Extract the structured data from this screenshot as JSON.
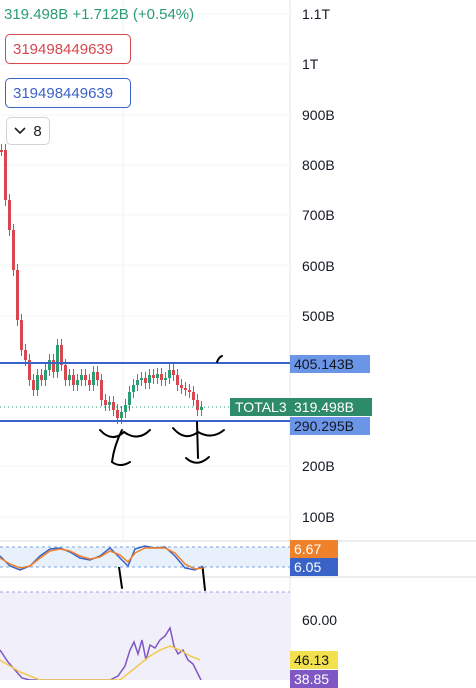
{
  "header": {
    "price_line": "319.498B  +1.712B (+0.54%)"
  },
  "value_boxes": {
    "red": "319498449639",
    "blue": "319498449639"
  },
  "indicators_toggle": {
    "icon": "chevron-down-icon",
    "count": "8"
  },
  "price_scale": {
    "labels": [
      "1.1T",
      "1T",
      "900B",
      "800B",
      "700B",
      "600B",
      "500B",
      "200B",
      "100B"
    ]
  },
  "horizontal_lines": {
    "upper": "405.143B",
    "lower": "290.295B"
  },
  "series": {
    "name": "TOTAL3",
    "last_value": "319.498B"
  },
  "stoch_rsi": {
    "value_1": "6.67",
    "value_2": "6.05"
  },
  "rsi": {
    "scale_label": "60.00",
    "value_1": "46.13",
    "value_2": "38.85"
  },
  "colors": {
    "up": "#2a9d72",
    "down": "#d6474f",
    "lines": "#3a63c8",
    "orange": "#f0812b",
    "rsi_bg": "#f1effa"
  }
}
